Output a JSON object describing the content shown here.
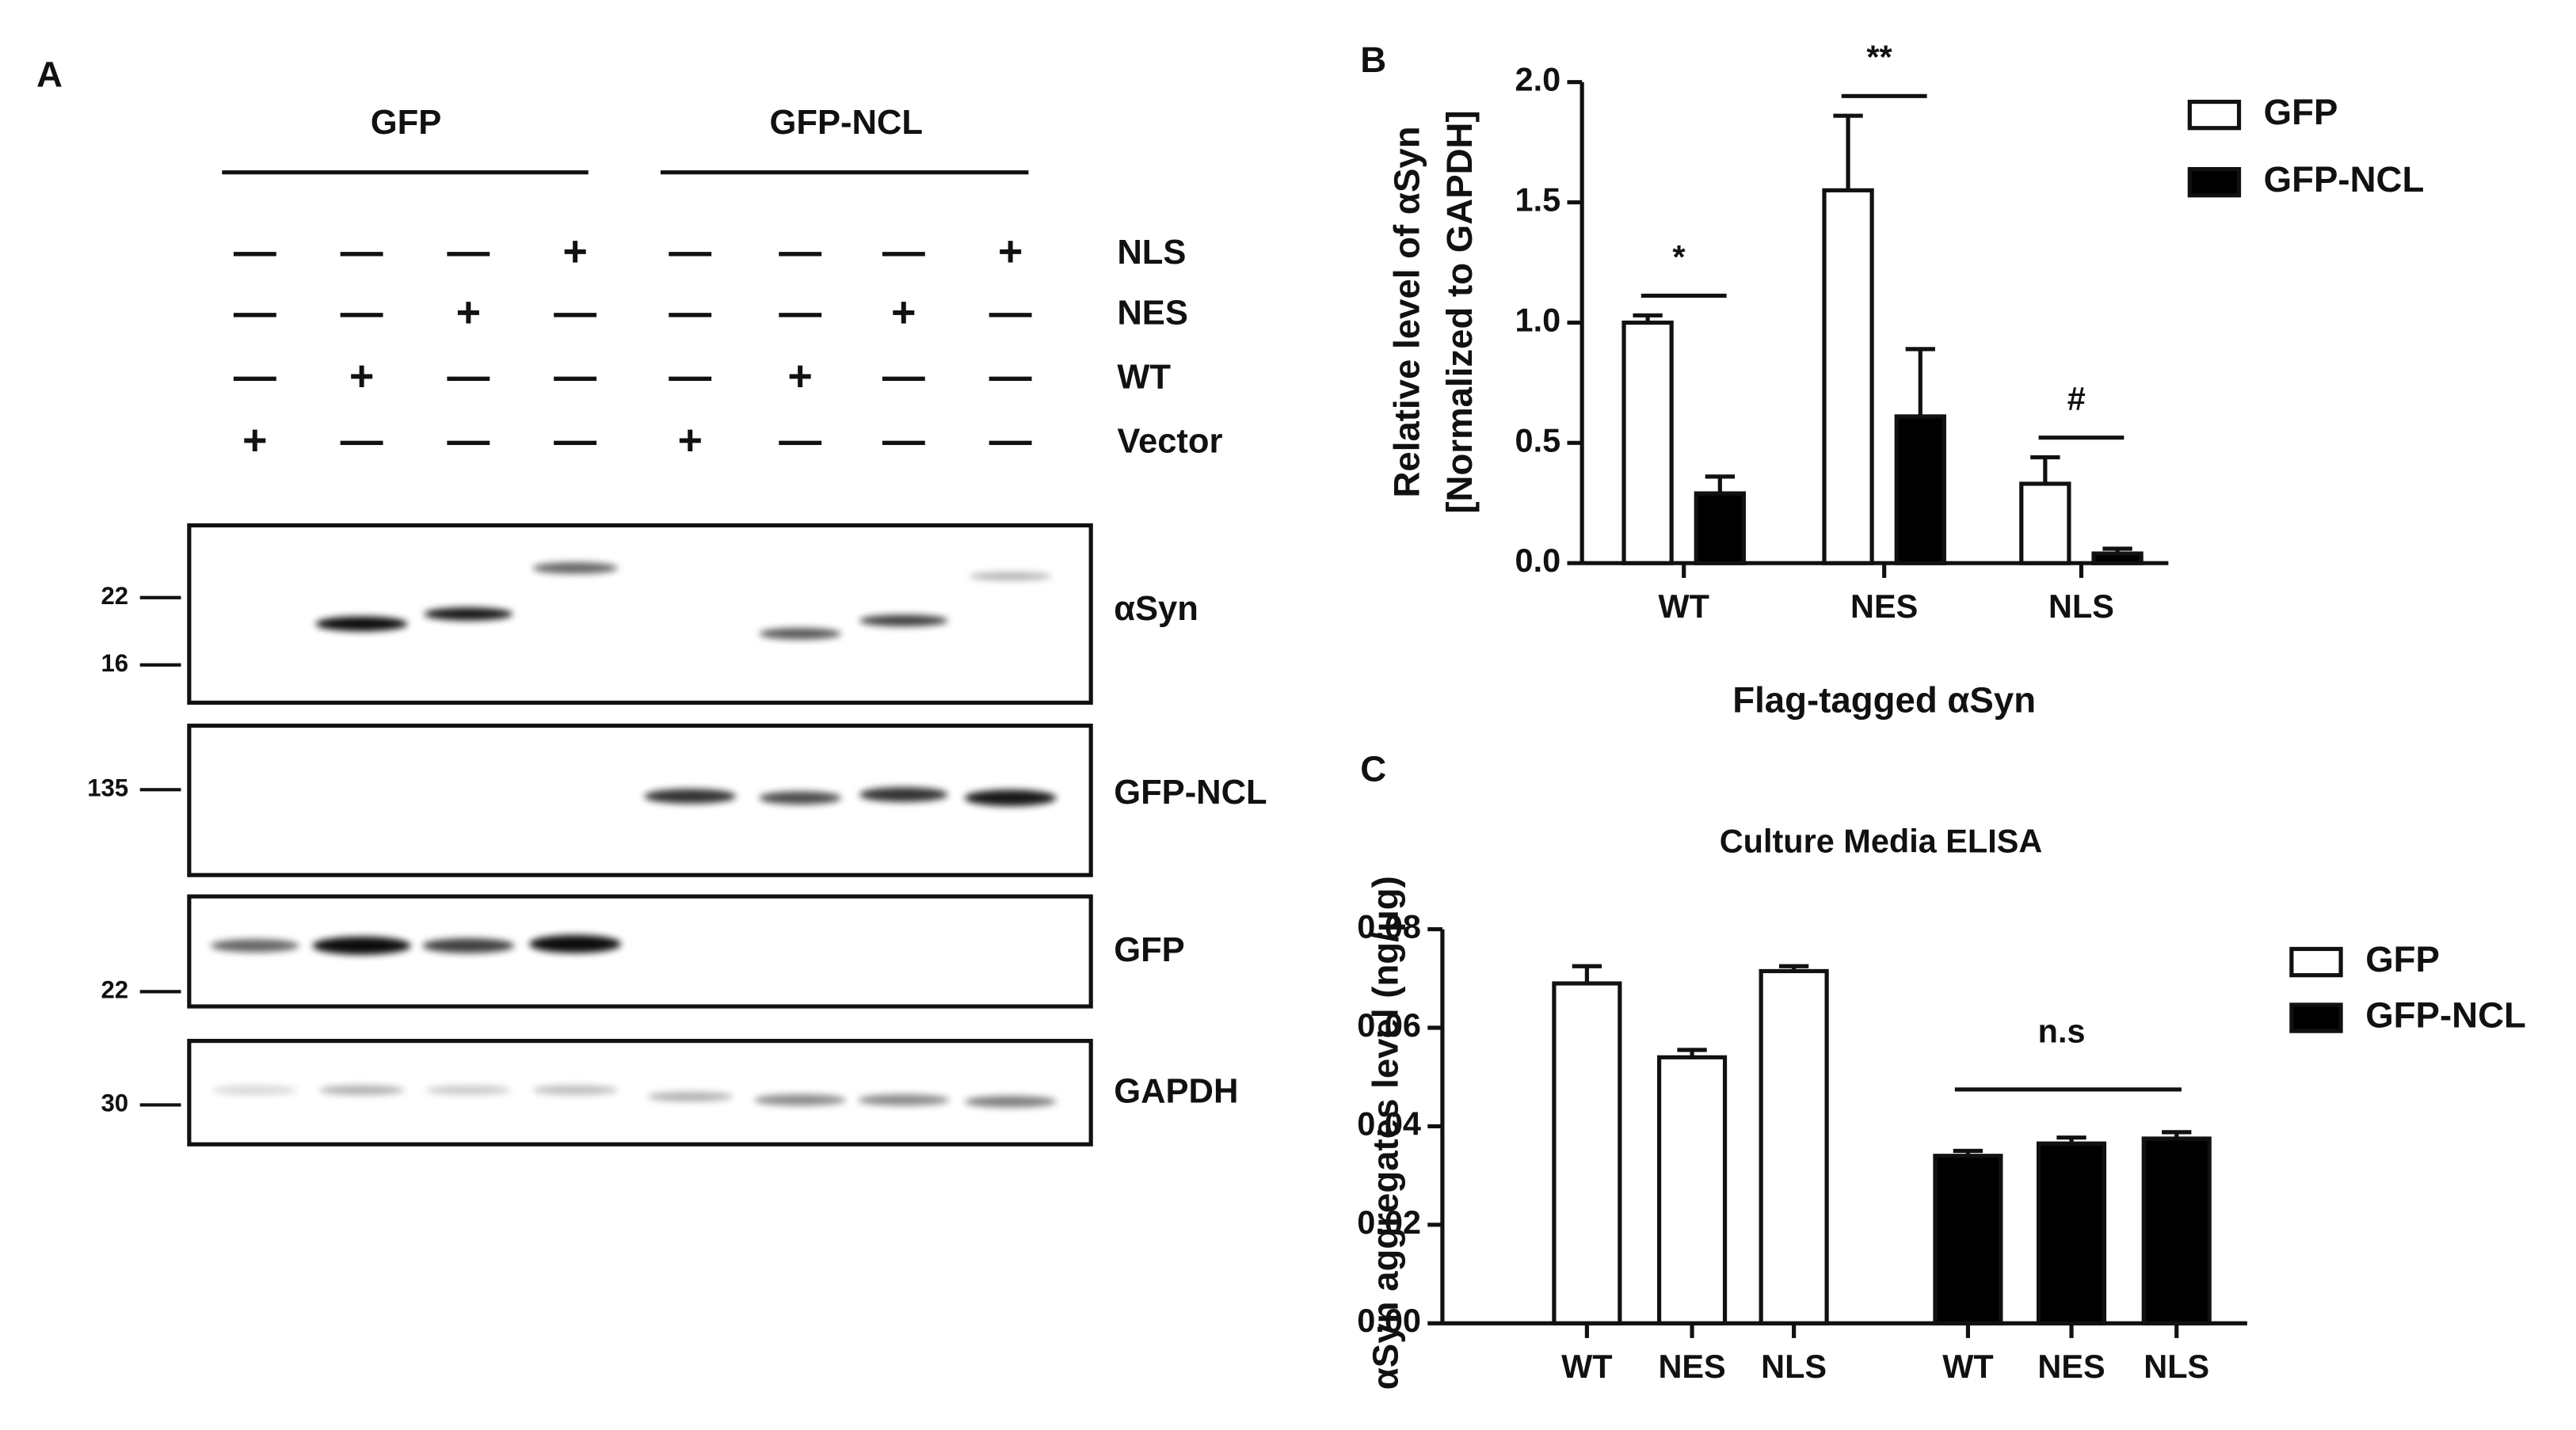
{
  "blot": {
    "panel_label": "A",
    "groups": [
      "GFP",
      "GFP-NCL"
    ],
    "conditions": [
      {
        "label": "NLS",
        "signs": [
          "—",
          "—",
          "—",
          "+",
          "—",
          "—",
          "—",
          "+"
        ]
      },
      {
        "label": "NES",
        "signs": [
          "—",
          "—",
          "+",
          "—",
          "—",
          "—",
          "+",
          "—"
        ]
      },
      {
        "label": "WT",
        "signs": [
          "—",
          "+",
          "—",
          "—",
          "—",
          "+",
          "—",
          "—"
        ]
      },
      {
        "label": "Vector",
        "signs": [
          "+",
          "—",
          "—",
          "—",
          "+",
          "—",
          "—",
          "—"
        ]
      }
    ],
    "blots": [
      {
        "label": "αSyn",
        "markers": [
          "22",
          "16"
        ]
      },
      {
        "label": "GFP-NCL",
        "markers": [
          "135"
        ]
      },
      {
        "label": "GFP",
        "markers": [
          "22"
        ]
      },
      {
        "label": "GAPDH",
        "markers": [
          "30"
        ]
      }
    ]
  },
  "chart_data": [
    {
      "type": "bar",
      "panel_label": "B",
      "ylabel": [
        "Relative level of αSyn",
        "[Normalized to GAPDH]"
      ],
      "xlabel": "Flag-tagged αSyn",
      "categories": [
        "WT",
        "NES",
        "NLS"
      ],
      "series": [
        {
          "name": "GFP",
          "color": "#ffffff",
          "values": [
            1.0,
            1.55,
            0.33
          ],
          "errors": [
            0.03,
            0.31,
            0.11
          ]
        },
        {
          "name": "GFP-NCL",
          "color": "#000000",
          "values": [
            0.29,
            0.61,
            0.04
          ],
          "errors": [
            0.07,
            0.28,
            0.02
          ]
        }
      ],
      "ylim": [
        0,
        2.0
      ],
      "yticks": [
        {
          "value": 0,
          "label": "0.0"
        },
        0.5,
        {
          "value": 1,
          "label": "1.0"
        },
        1.5,
        {
          "value": 2,
          "label": "2.0"
        }
      ],
      "annotations": [
        "*",
        "**",
        "#"
      ],
      "legend": "top-right"
    },
    {
      "type": "bar",
      "panel_label": "C",
      "title": "Culture Media ELISA",
      "ylabel": [
        "αSyn aggregates level (ng/μg)"
      ],
      "categories": [
        "WT",
        "NES",
        "NLS",
        "WT",
        "NES",
        "NLS"
      ],
      "series": [
        {
          "name": "GFP",
          "color": "#ffffff",
          "values": [
            0.069,
            0.054,
            0.0715,
            null,
            null,
            null
          ],
          "errors": [
            0.0035,
            0.0015,
            0.001,
            null,
            null,
            null
          ]
        },
        {
          "name": "GFP-NCL",
          "color": "#000000",
          "values": [
            null,
            null,
            null,
            0.034,
            0.0365,
            0.0375
          ],
          "errors": [
            null,
            null,
            null,
            0.001,
            0.0012,
            0.0013
          ]
        }
      ],
      "ylim": [
        0,
        0.08
      ],
      "yticks": [
        {
          "value": 0,
          "label": "0.00"
        },
        {
          "value": 0.02,
          "label": "0.02"
        },
        {
          "value": 0.04,
          "label": "0.04"
        },
        {
          "value": 0.06,
          "label": "0.06"
        },
        {
          "value": 0.08,
          "label": "0.08"
        }
      ],
      "annotations": [
        "n.s"
      ],
      "legend": "right"
    }
  ]
}
